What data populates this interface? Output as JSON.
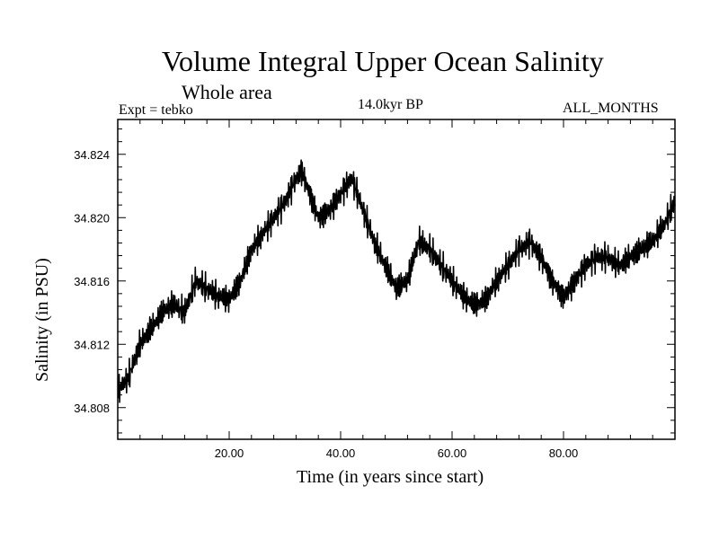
{
  "chart_data": {
    "type": "line",
    "title": "Volume Integral Upper Ocean Salinity",
    "subtitle": "Whole area",
    "annotations": {
      "experiment": "Expt = tebko",
      "period": "14.0kyr BP",
      "months": "ALL_MONTHS"
    },
    "xlabel": "Time (in years since start)",
    "ylabel": "Salinity (in PSU)",
    "xlim": [
      0,
      100
    ],
    "ylim": [
      34.806,
      34.8262
    ],
    "xticks": [
      20,
      40,
      60,
      80
    ],
    "xtick_labels": [
      "20.00",
      "40.00",
      "60.00",
      "80.00"
    ],
    "yticks": [
      34.808,
      34.812,
      34.816,
      34.82,
      34.824
    ],
    "ytick_labels": [
      "34.808",
      "34.812",
      "34.816",
      "34.820",
      "34.824"
    ],
    "grid": false,
    "series": [
      {
        "name": "Salinity",
        "color": "#000000",
        "x": [
          0,
          2,
          4,
          6,
          8,
          10,
          12,
          14,
          16,
          18,
          20,
          22,
          24,
          26,
          28,
          30,
          32,
          33,
          34,
          36,
          38,
          40,
          42,
          44,
          46,
          48,
          50,
          52,
          54,
          56,
          58,
          60,
          62,
          64,
          66,
          68,
          70,
          72,
          74,
          76,
          78,
          80,
          82,
          84,
          86,
          88,
          90,
          92,
          94,
          96,
          98,
          100
        ],
        "values": [
          34.809,
          34.81,
          34.812,
          34.813,
          34.814,
          34.8145,
          34.814,
          34.816,
          34.8155,
          34.815,
          34.8148,
          34.816,
          34.818,
          34.819,
          34.82,
          34.821,
          34.8225,
          34.823,
          34.822,
          34.82,
          34.8205,
          34.8215,
          34.8225,
          34.8205,
          34.8185,
          34.817,
          34.8155,
          34.816,
          34.8185,
          34.818,
          34.817,
          34.816,
          34.815,
          34.8145,
          34.8148,
          34.816,
          34.817,
          34.818,
          34.8185,
          34.8175,
          34.816,
          34.815,
          34.816,
          34.817,
          34.8175,
          34.8175,
          34.817,
          34.8175,
          34.818,
          34.8185,
          34.8195,
          34.821
        ]
      }
    ]
  }
}
